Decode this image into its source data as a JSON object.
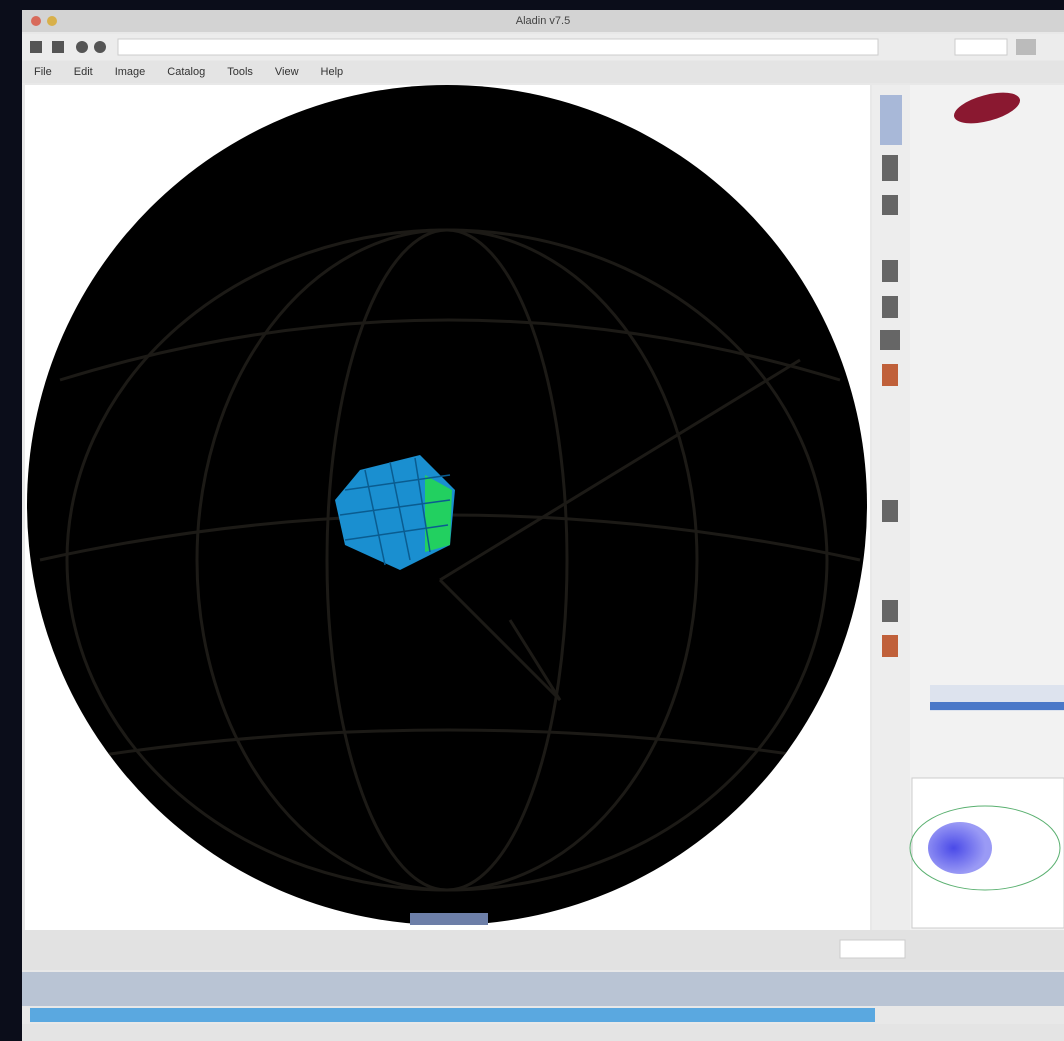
{
  "window": {
    "title": "Aladin v7.5"
  },
  "menu": [
    "File",
    "Edit",
    "Image",
    "Catalog",
    "Tools",
    "View",
    "Help"
  ]
}
